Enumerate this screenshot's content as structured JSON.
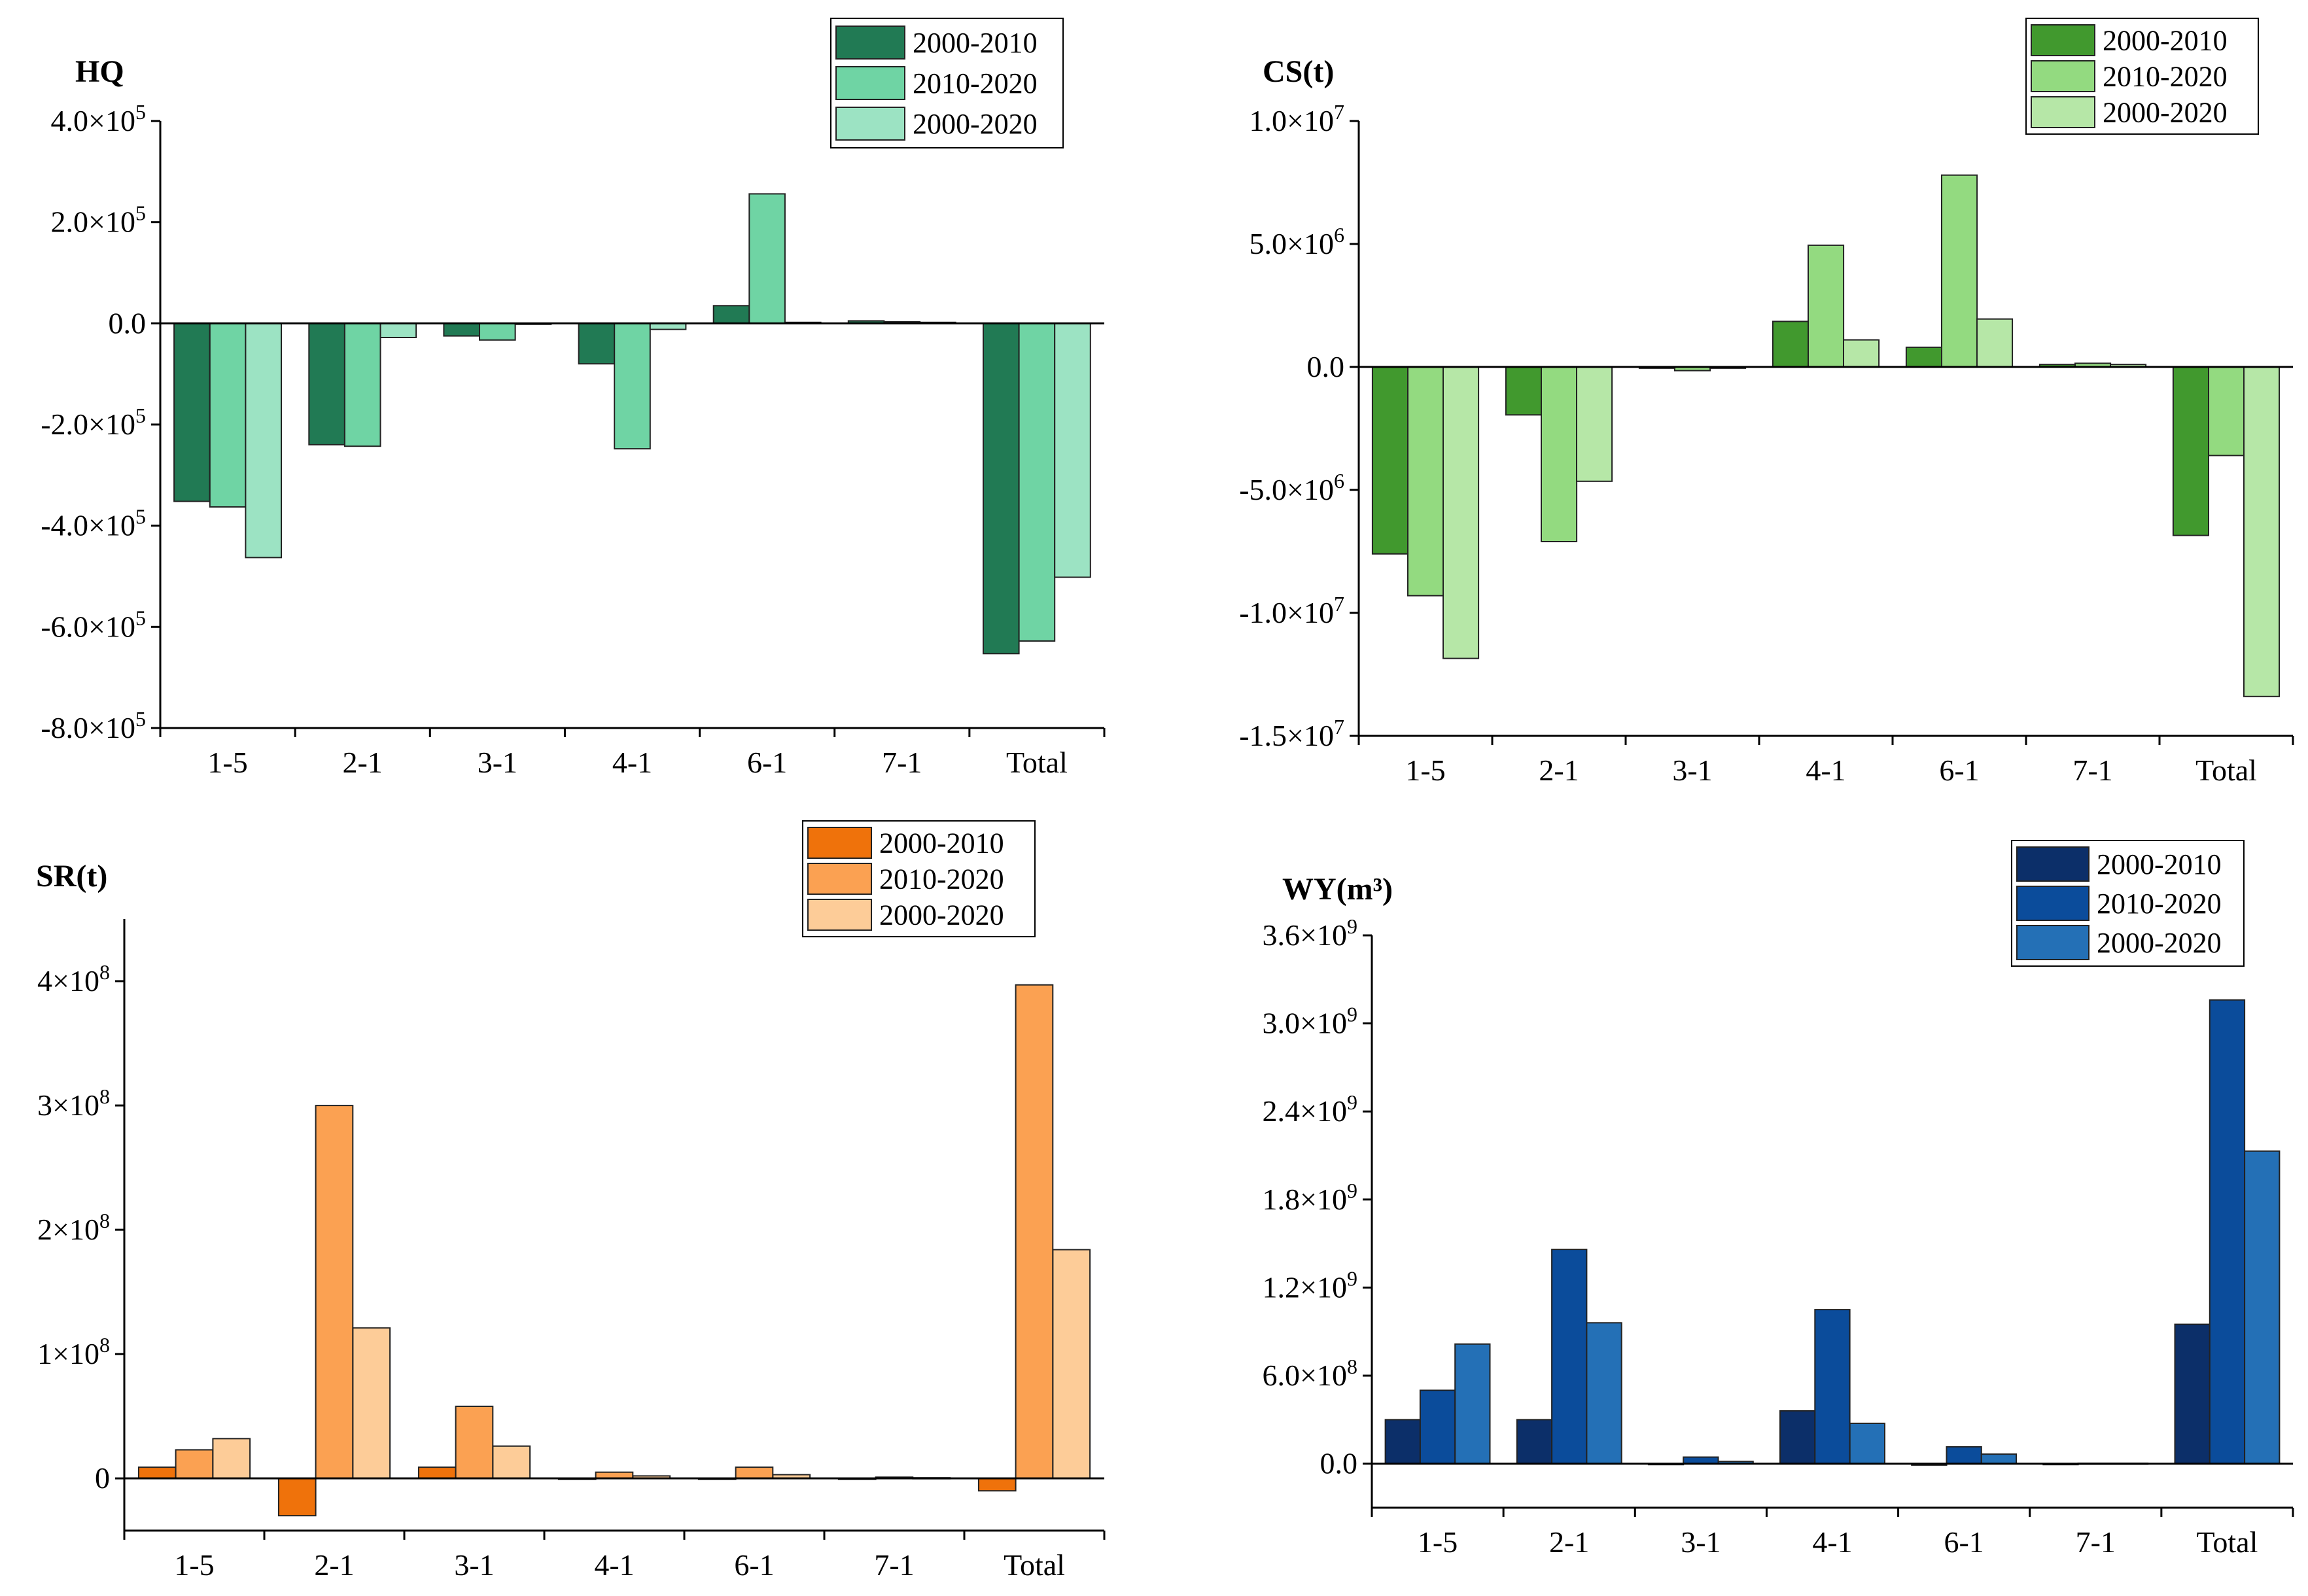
{
  "chart_data": [
    {
      "type": "bar",
      "title": "HQ",
      "categories": [
        "1-5",
        "2-1",
        "3-1",
        "4-1",
        "6-1",
        "7-1",
        "Total"
      ],
      "series": [
        {
          "name": "2000-2010",
          "color": "#217a54",
          "values": [
            -352000,
            -240000,
            -25000,
            -80000,
            35000,
            5000,
            -653000
          ]
        },
        {
          "name": "2010-2020",
          "color": "#6fd4a4",
          "values": [
            -363000,
            -243000,
            -33000,
            -248000,
            256000,
            3000,
            -628000
          ]
        },
        {
          "name": "2000-2020",
          "color": "#9ce3c3",
          "values": [
            -463000,
            -28000,
            -2000,
            -12000,
            2000,
            2000,
            -502000
          ]
        }
      ],
      "y_ticks": [
        400000,
        200000,
        0,
        -200000,
        -400000,
        -600000,
        -800000
      ],
      "y_tick_labels": [
        {
          "m": "4.0×10",
          "e": "5"
        },
        {
          "m": "2.0×10",
          "e": "5"
        },
        {
          "m": "0.0",
          "e": ""
        },
        {
          "m": "-2.0×10",
          "e": "5"
        },
        {
          "m": "-4.0×10",
          "e": "5"
        },
        {
          "m": "-6.0×10",
          "e": "5"
        },
        {
          "m": "-8.0×10",
          "e": "5"
        }
      ],
      "ylim": [
        -800000,
        400000
      ],
      "xlabel": "",
      "ylabel": "",
      "legend_position": "top-right"
    },
    {
      "type": "bar",
      "title": "CS(t)",
      "categories": [
        "1-5",
        "2-1",
        "3-1",
        "4-1",
        "6-1",
        "7-1",
        "Total"
      ],
      "series": [
        {
          "name": "2000-2010",
          "color": "#41992e",
          "values": [
            -7600000,
            -1950000,
            -50000,
            1850000,
            800000,
            100000,
            -6850000
          ]
        },
        {
          "name": "2010-2020",
          "color": "#93da80",
          "values": [
            -9300000,
            -7100000,
            -150000,
            4950000,
            7800000,
            150000,
            -3600000
          ]
        },
        {
          "name": "2000-2020",
          "color": "#b6e7a7",
          "values": [
            -11850000,
            -4650000,
            -50000,
            1100000,
            1950000,
            100000,
            -13400000
          ]
        }
      ],
      "y_ticks": [
        10000000,
        5000000,
        0,
        -5000000,
        -10000000,
        -15000000
      ],
      "y_tick_labels": [
        {
          "m": "1.0×10",
          "e": "7"
        },
        {
          "m": "5.0×10",
          "e": "6"
        },
        {
          "m": "0.0",
          "e": ""
        },
        {
          "m": "-5.0×10",
          "e": "6"
        },
        {
          "m": "-1.0×10",
          "e": "7"
        },
        {
          "m": "-1.5×10",
          "e": "7"
        }
      ],
      "ylim": [
        -15000000,
        10000000
      ],
      "xlabel": "",
      "ylabel": "",
      "legend_position": "top-right"
    },
    {
      "type": "bar",
      "title": "SR(t)",
      "categories": [
        "1-5",
        "2-1",
        "3-1",
        "4-1",
        "6-1",
        "7-1",
        "Total"
      ],
      "series": [
        {
          "name": "2000-2010",
          "color": "#ef720b",
          "values": [
            9000000,
            -30000000,
            9000000,
            0,
            0,
            0,
            -10000000
          ]
        },
        {
          "name": "2010-2020",
          "color": "#fba152",
          "values": [
            23000000,
            300000000,
            58000000,
            5000000,
            9000000,
            1000000,
            397000000
          ]
        },
        {
          "name": "2000-2020",
          "color": "#fdcc98",
          "values": [
            32000000,
            121000000,
            26000000,
            2000000,
            3000000,
            500000,
            184000000
          ]
        }
      ],
      "y_ticks": [
        400000000,
        300000000,
        200000000,
        100000000,
        0
      ],
      "y_tick_labels": [
        {
          "m": "4×10",
          "e": "8"
        },
        {
          "m": "3×10",
          "e": "8"
        },
        {
          "m": "2×10",
          "e": "8"
        },
        {
          "m": "1×10",
          "e": "8"
        },
        {
          "m": "0",
          "e": ""
        }
      ],
      "ylim": [
        -42000000,
        450000000
      ],
      "xlabel": "",
      "ylabel": "",
      "legend_position": "top-right"
    },
    {
      "type": "bar",
      "title": "WY(m³)",
      "categories": [
        "1-5",
        "2-1",
        "3-1",
        "4-1",
        "6-1",
        "7-1",
        "Total"
      ],
      "series": [
        {
          "name": "2000-2010",
          "color": "#0c2f69",
          "values": [
            300000000,
            300000000,
            0,
            360000000,
            -10000000,
            0,
            950000000
          ]
        },
        {
          "name": "2010-2020",
          "color": "#0b4c9b",
          "values": [
            500000000,
            1460000000,
            45000000,
            1050000000,
            115000000,
            3000000,
            3160000000
          ]
        },
        {
          "name": "2000-2020",
          "color": "#2470b6",
          "values": [
            815000000,
            960000000,
            15000000,
            275000000,
            65000000,
            3000000,
            2130000000
          ]
        }
      ],
      "y_ticks": [
        3600000000,
        3000000000,
        2400000000,
        1800000000,
        1200000000,
        600000000,
        0
      ],
      "y_tick_labels": [
        {
          "m": "3.6×10",
          "e": "9"
        },
        {
          "m": "3.0×10",
          "e": "9"
        },
        {
          "m": "2.4×10",
          "e": "9"
        },
        {
          "m": "1.8×10",
          "e": "9"
        },
        {
          "m": "1.2×10",
          "e": "9"
        },
        {
          "m": "6.0×10",
          "e": "8"
        },
        {
          "m": "0.0",
          "e": ""
        }
      ],
      "ylim": [
        -300000000,
        3600000000
      ],
      "xlabel": "",
      "ylabel": "",
      "legend_position": "top-right"
    }
  ]
}
